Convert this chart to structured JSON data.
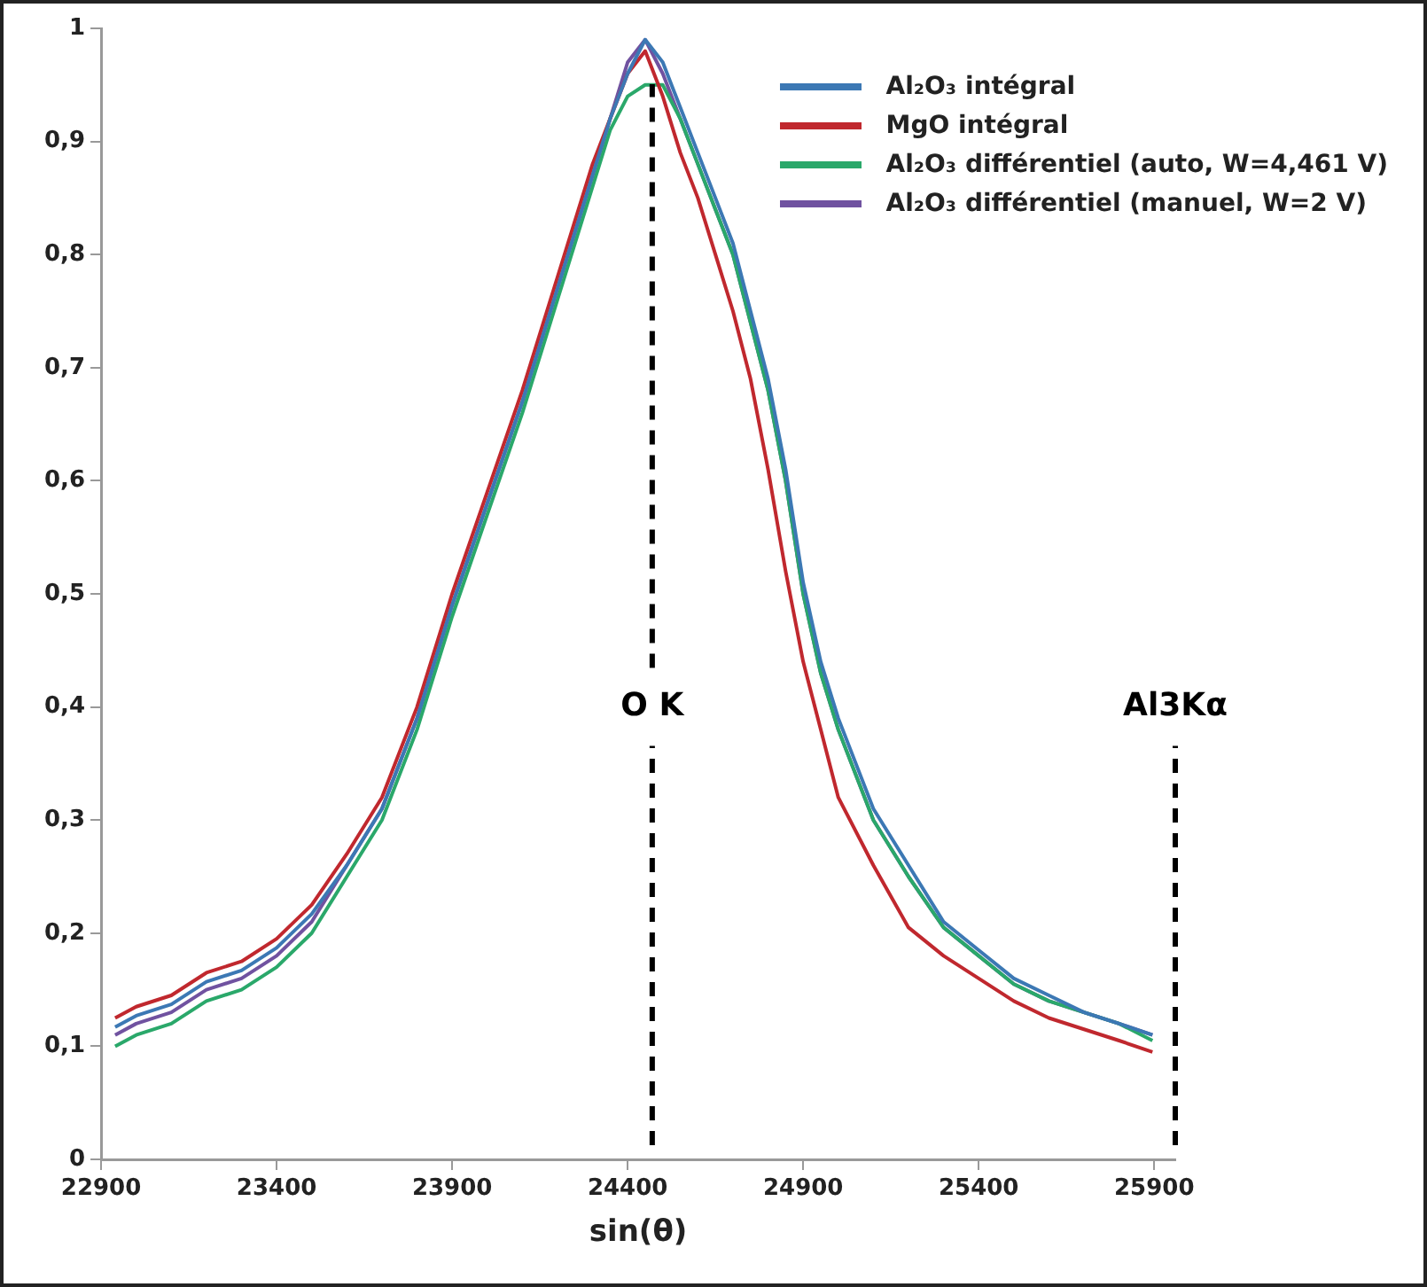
{
  "chart_data": {
    "type": "line",
    "xlabel": "sin(θ)",
    "x": [
      22940,
      23000,
      23100,
      23200,
      23300,
      23400,
      23500,
      23600,
      23700,
      23800,
      23900,
      24000,
      24100,
      24200,
      24300,
      24350,
      24400,
      24450,
      24500,
      24550,
      24600,
      24650,
      24700,
      24750,
      24800,
      24850,
      24900,
      24950,
      25000,
      25100,
      25200,
      25300,
      25400,
      25500,
      25600,
      25700,
      25800,
      25895
    ],
    "series": [
      {
        "name": "Al₂O₃ intégral",
        "color": "#3c78b4",
        "values": [
          0.117,
          0.127,
          0.137,
          0.157,
          0.167,
          0.187,
          0.217,
          0.26,
          0.31,
          0.39,
          0.49,
          0.58,
          0.67,
          0.77,
          0.87,
          0.92,
          0.96,
          0.99,
          0.97,
          0.93,
          0.89,
          0.85,
          0.81,
          0.75,
          0.69,
          0.61,
          0.51,
          0.44,
          0.39,
          0.31,
          0.26,
          0.21,
          0.185,
          0.16,
          0.145,
          0.13,
          0.12,
          0.11
        ]
      },
      {
        "name": "MgO  intégral",
        "color": "#c0282e",
        "values": [
          0.125,
          0.135,
          0.145,
          0.165,
          0.175,
          0.195,
          0.225,
          0.27,
          0.32,
          0.4,
          0.5,
          0.59,
          0.68,
          0.78,
          0.88,
          0.92,
          0.96,
          0.98,
          0.94,
          0.89,
          0.85,
          0.8,
          0.75,
          0.69,
          0.61,
          0.52,
          0.44,
          0.38,
          0.32,
          0.26,
          0.205,
          0.18,
          0.16,
          0.14,
          0.125,
          0.115,
          0.105,
          0.095
        ]
      },
      {
        "name": "Al₂O₃ différentiel (auto, W=4,461 V)",
        "color": "#2aa86a",
        "values": [
          0.1,
          0.11,
          0.12,
          0.14,
          0.15,
          0.17,
          0.2,
          0.25,
          0.3,
          0.38,
          0.48,
          0.57,
          0.66,
          0.76,
          0.86,
          0.91,
          0.94,
          0.95,
          0.95,
          0.92,
          0.88,
          0.84,
          0.8,
          0.74,
          0.68,
          0.6,
          0.5,
          0.43,
          0.38,
          0.3,
          0.25,
          0.205,
          0.18,
          0.155,
          0.14,
          0.13,
          0.12,
          0.105
        ]
      },
      {
        "name": "Al₂O₃ différentiel (manuel, W=2 V)",
        "color": "#7052a0",
        "values": [
          0.11,
          0.12,
          0.13,
          0.15,
          0.16,
          0.18,
          0.21,
          0.26,
          0.31,
          0.39,
          0.49,
          0.58,
          0.67,
          0.77,
          0.87,
          0.92,
          0.97,
          0.99,
          0.96,
          0.92,
          0.88,
          0.84,
          0.8,
          0.74,
          0.68,
          0.6,
          0.5,
          0.43,
          0.38,
          0.3,
          0.25,
          0.205,
          0.18,
          0.155,
          0.14,
          0.13,
          0.12,
          0.11
        ]
      }
    ],
    "xlim": [
      22900,
      25960
    ],
    "xticks": [
      22900,
      23400,
      23900,
      24400,
      24900,
      25400,
      25900
    ],
    "ylim": [
      0,
      1
    ],
    "yticks": [
      0,
      {
        "value": 0.1,
        "label": "0,1"
      },
      {
        "value": 0.2,
        "label": "0,2"
      },
      {
        "value": 0.3,
        "label": "0,3"
      },
      {
        "value": 0.4,
        "label": "0,4"
      },
      {
        "value": 0.5,
        "label": "0,5"
      },
      {
        "value": 0.6,
        "label": "0,6"
      },
      {
        "value": 0.7,
        "label": "0,7"
      },
      {
        "value": 0.8,
        "label": "0,8"
      },
      {
        "value": 0.9,
        "label": "0,9"
      },
      1
    ],
    "ref_lines": [
      {
        "axis": "x",
        "value": 24470,
        "label": "O K",
        "color": "#000000",
        "line_style": "dashed"
      },
      {
        "axis": "x",
        "value": 25960,
        "label": "Al3Kα",
        "color": "#000000",
        "line_style": "dashed"
      }
    ],
    "grid": false,
    "legend": "top right",
    "marker": "none",
    "line_style": "solid"
  }
}
